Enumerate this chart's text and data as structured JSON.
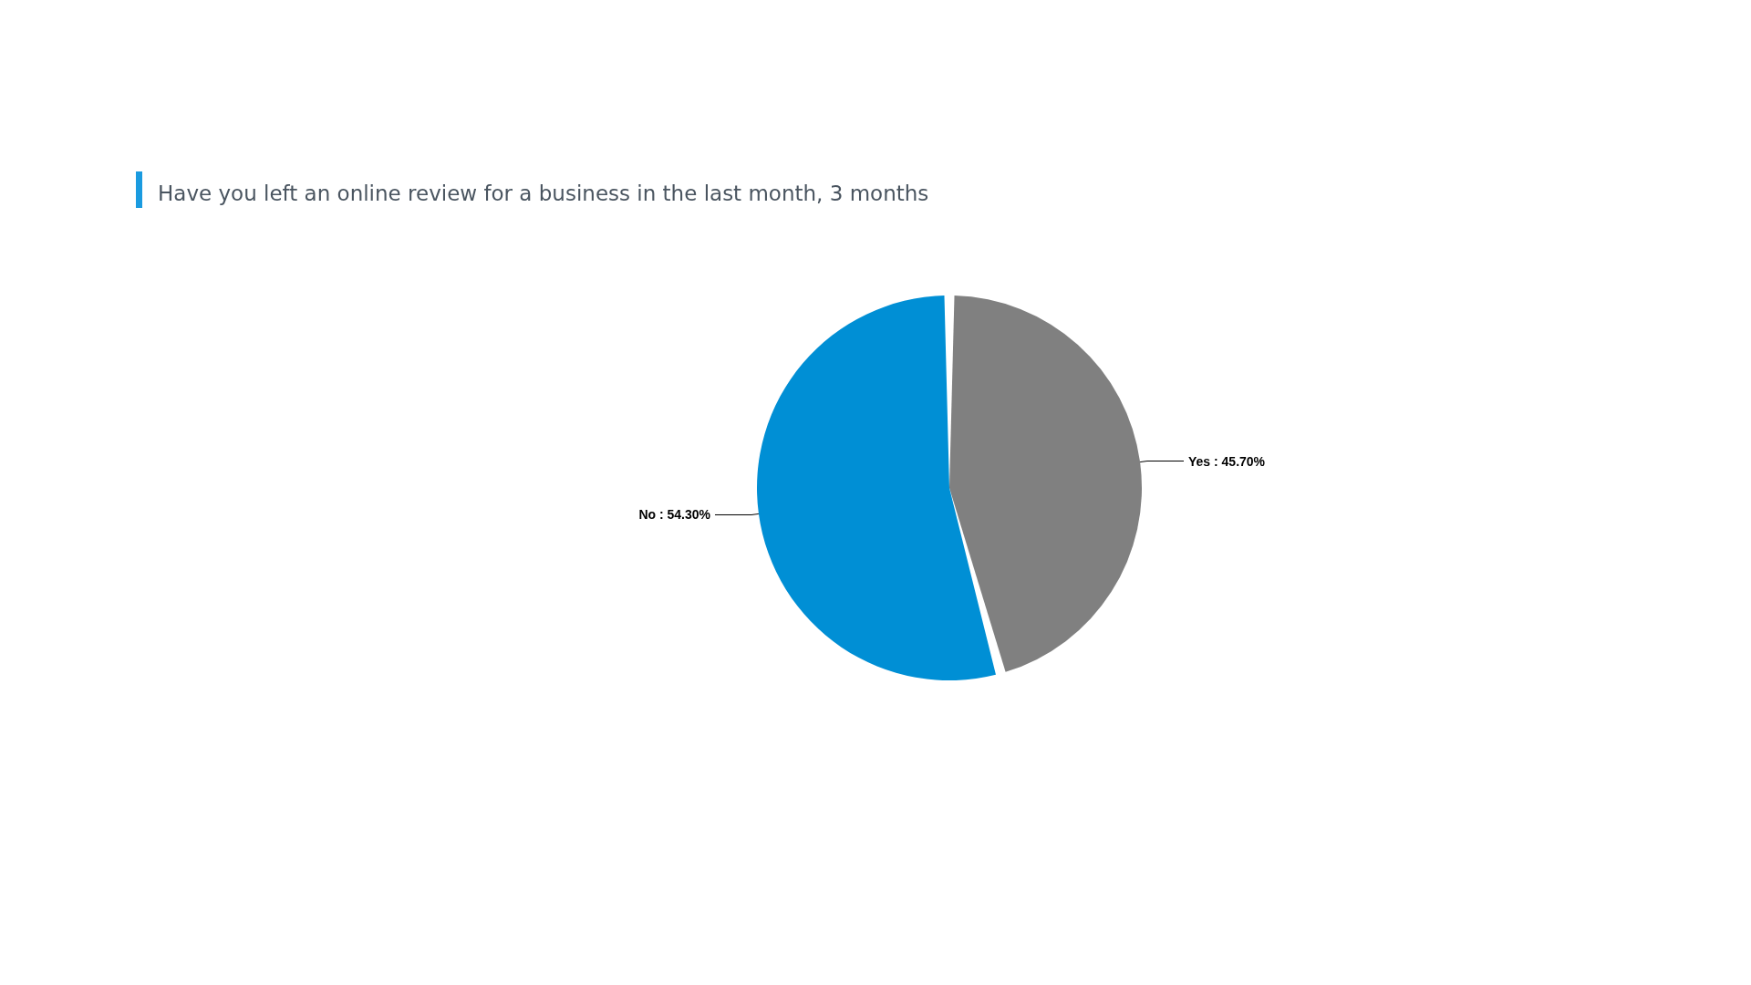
{
  "chart_data": {
    "type": "pie",
    "title": "Have you left an online review for a business in the last month, 3 months",
    "categories": [
      "Yes",
      "No"
    ],
    "values": [
      45.7,
      54.3
    ],
    "colors": [
      "#808080",
      "#008fd5"
    ],
    "value_labels": [
      "45.70%",
      "54.30%"
    ],
    "legend": false
  }
}
